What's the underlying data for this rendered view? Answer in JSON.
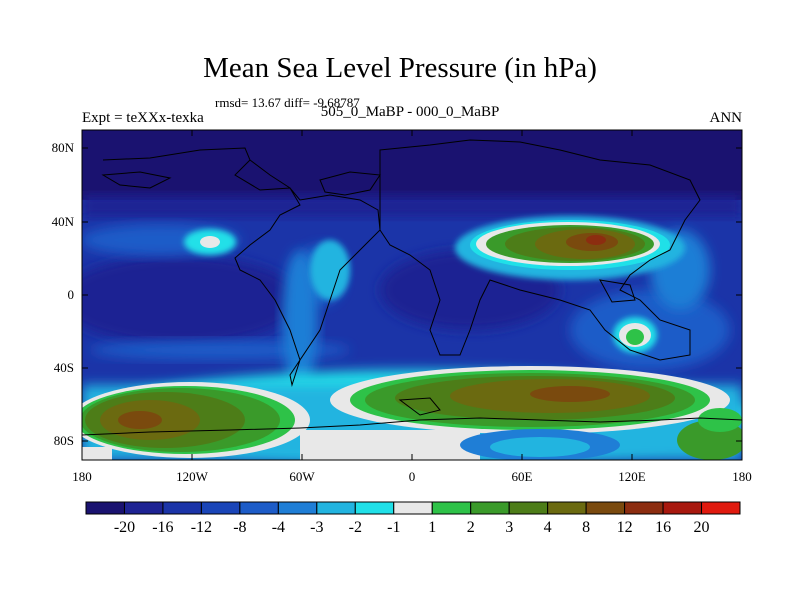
{
  "title": "Mean Sea Level Pressure (in hPa)",
  "stats_text": "rmsd= 13.67 diff= -9.68787",
  "experiment_label": "Expt = teXXx-texka",
  "comparison_label": "505_0_MaBP - 000_0_MaBP",
  "season_label": "ANN",
  "map": {
    "lon_range": [
      -180,
      180
    ],
    "lat_range": [
      -90,
      90
    ],
    "lat_tick_labels": [
      "80N",
      "40N",
      "0",
      "40S",
      "80S"
    ],
    "lon_tick_labels": [
      "180",
      "120W",
      "60W",
      "0",
      "60E",
      "120E",
      "180"
    ]
  },
  "colorbar": {
    "labels": [
      "-20",
      "-16",
      "-12",
      "-8",
      "-4",
      "-3",
      "-2",
      "-1",
      "1",
      "2",
      "3",
      "4",
      "8",
      "12",
      "16",
      "20"
    ],
    "colors": [
      "#1a1270",
      "#1e2393",
      "#1b34a8",
      "#1a45b8",
      "#1d5cc8",
      "#1f7ed6",
      "#22b4e0",
      "#20e0e8",
      "#e8e8e8",
      "#2ec248",
      "#3a9a2a",
      "#4d7d18",
      "#6b6a10",
      "#7a4a0e",
      "#8c2d10",
      "#a8180e",
      "#e01a0e"
    ]
  }
}
